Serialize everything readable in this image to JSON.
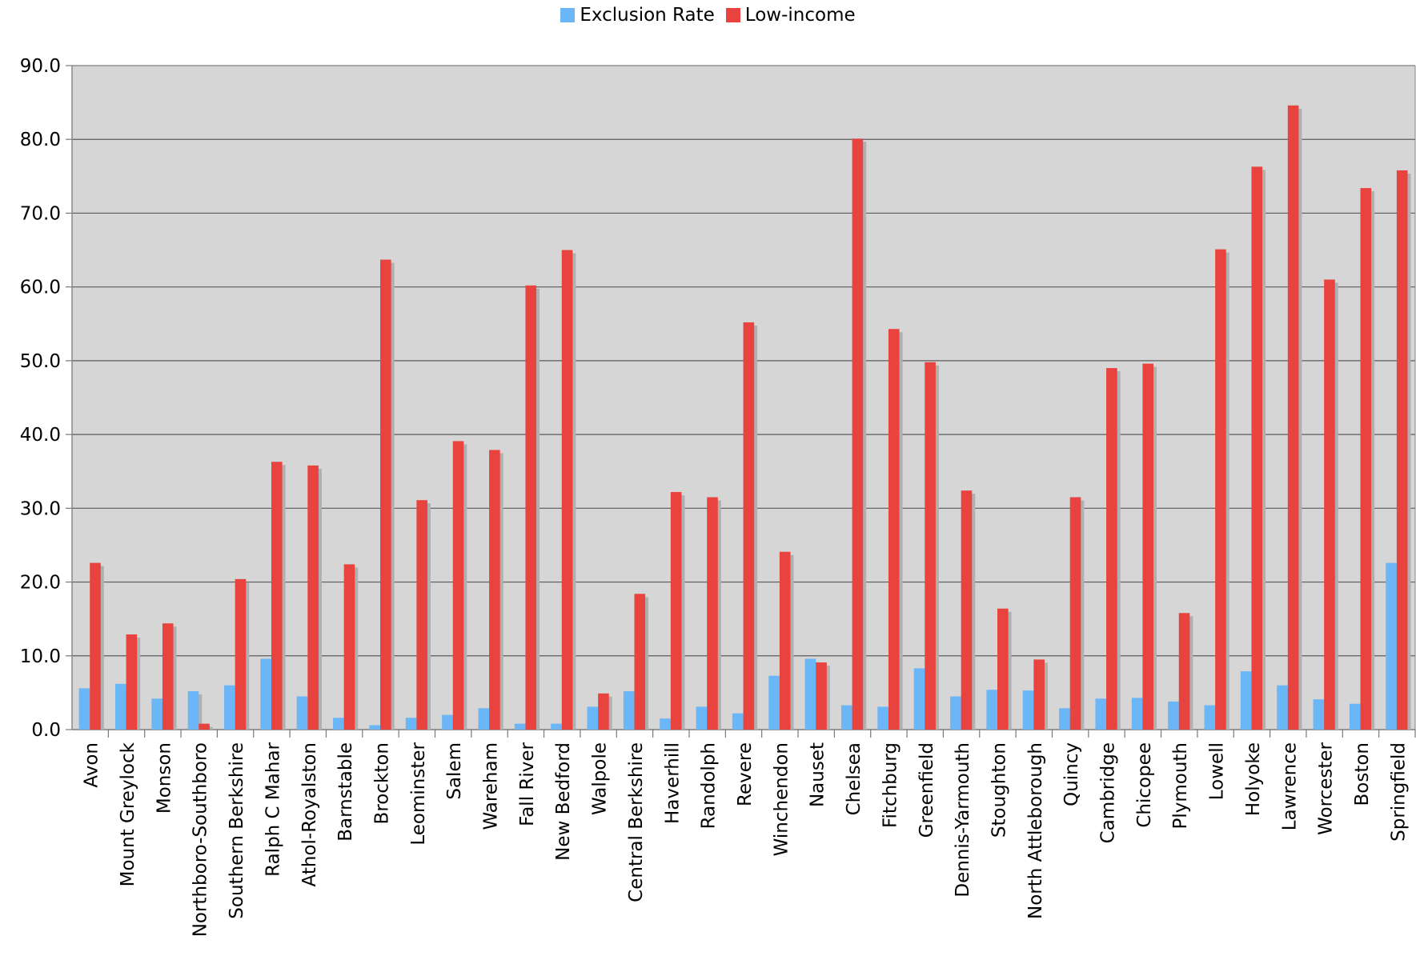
{
  "chart_data": {
    "type": "bar",
    "title": "",
    "xlabel": "",
    "ylabel": "",
    "ylim": [
      0,
      90
    ],
    "yticks": [
      "0.0",
      "10.0",
      "20.0",
      "30.0",
      "40.0",
      "50.0",
      "60.0",
      "70.0",
      "80.0",
      "90.0"
    ],
    "grid": true,
    "legend_position": "top-center",
    "categories": [
      "Avon",
      "Mount Greylock",
      "Monson",
      "Northboro-Southboro",
      "Southern Berkshire",
      "Ralph C Mahar",
      "Athol-Royalston",
      "Barnstable",
      "Brockton",
      "Leominster",
      "Salem",
      "Wareham",
      "Fall River",
      "New Bedford",
      "Walpole",
      "Central Berkshire",
      "Haverhill",
      "Randolph",
      "Revere",
      "Winchendon",
      "Nauset",
      "Chelsea",
      "Fitchburg",
      "Greenfield",
      "Dennis-Yarmouth",
      "Stoughton",
      "North Attleborough",
      "Quincy",
      "Cambridge",
      "Chicopee",
      "Plymouth",
      "Lowell",
      "Holyoke",
      "Lawrence",
      "Worcester",
      "Boston",
      "Springfield"
    ],
    "series": [
      {
        "name": "Exclusion Rate",
        "color": "#6bb6f6",
        "values": [
          5.6,
          6.2,
          4.2,
          5.2,
          6.0,
          9.6,
          4.5,
          1.6,
          0.6,
          1.6,
          2.0,
          2.9,
          0.8,
          0.8,
          3.1,
          5.2,
          1.5,
          3.1,
          2.2,
          7.3,
          9.6,
          3.3,
          3.1,
          8.3,
          4.5,
          5.4,
          5.3,
          2.9,
          4.2,
          4.3,
          3.8,
          3.3,
          7.9,
          6.0,
          4.1,
          3.5,
          22.6
        ]
      },
      {
        "name": "Low-income",
        "color": "#e8433f",
        "values": [
          22.6,
          12.9,
          14.4,
          0.8,
          20.4,
          36.3,
          35.8,
          22.4,
          63.7,
          31.1,
          39.1,
          37.9,
          60.2,
          65.0,
          4.9,
          18.4,
          32.2,
          31.5,
          55.2,
          24.1,
          9.1,
          80.1,
          54.3,
          49.8,
          32.4,
          16.4,
          9.5,
          31.5,
          49.0,
          49.6,
          15.8,
          65.1,
          76.3,
          84.6,
          61.0,
          73.4,
          75.8
        ]
      }
    ]
  }
}
